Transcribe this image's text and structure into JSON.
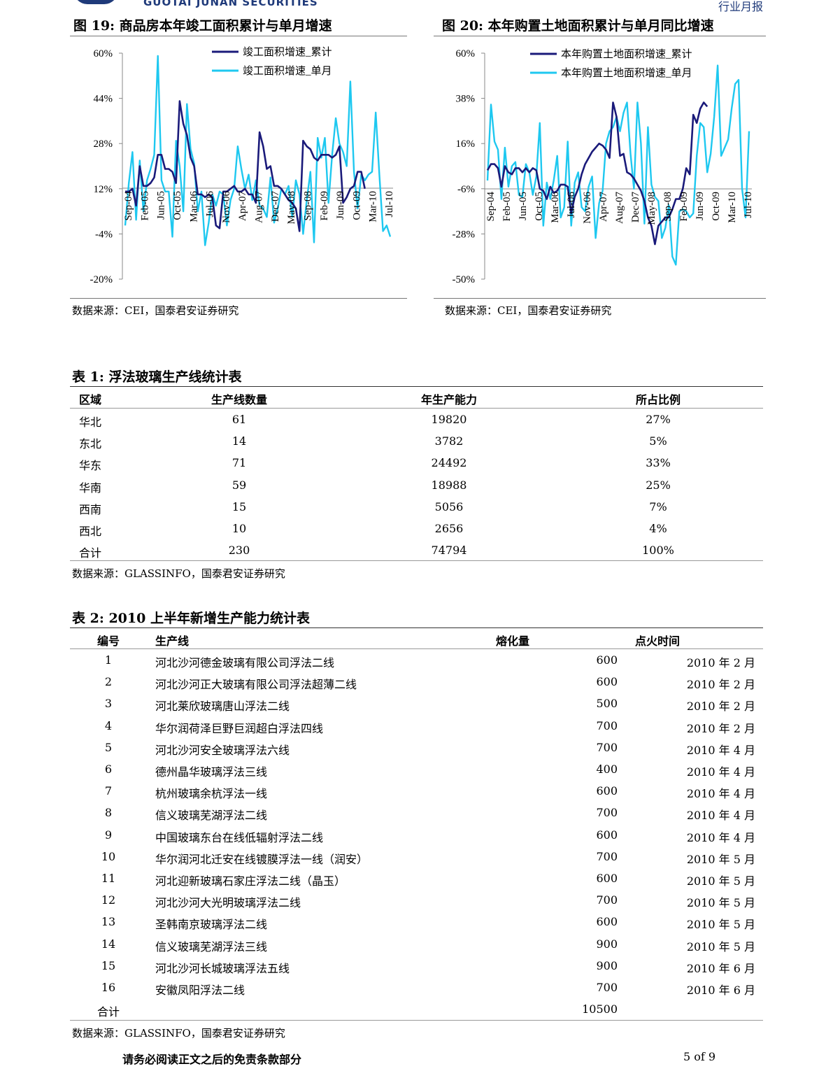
{
  "header": {
    "brand": "GUOTAI JUNAN SECURITIES",
    "report_type": "行业月报"
  },
  "figure19": {
    "title": "图 19:  商品房本年竣工面积累计与单月增速",
    "source": "数据来源：CEI，国泰君安证券研究",
    "chart_data": {
      "type": "line",
      "yticks": [
        "60%",
        "44%",
        "28%",
        "12%",
        "-4%",
        "-20%"
      ],
      "ylim": [
        -20,
        60
      ],
      "xticks": [
        "Sep-04",
        "Feb-05",
        "Jun-05",
        "Oct-05",
        "Mar-06",
        "Jul-06",
        "Nov-06",
        "Apr-07",
        "Aug-07",
        "Dec-07",
        "May-08",
        "Sep-08",
        "Feb-09",
        "Jun-09",
        "Oct-09",
        "Mar-10",
        "Jul-10"
      ],
      "series": [
        {
          "name": "竣工面积增速_累计",
          "color": "#1a1a7a",
          "values": [
            11,
            11,
            12,
            6,
            20,
            13,
            13,
            14,
            16,
            24,
            24,
            19,
            19,
            18,
            14,
            43,
            35,
            31,
            23,
            20,
            10,
            10,
            9,
            10,
            9,
            -1,
            -2,
            11,
            11,
            12,
            13,
            11,
            11,
            12,
            10,
            10,
            7,
            32,
            27,
            19,
            20,
            13,
            13,
            12,
            10,
            8,
            7,
            5,
            -3,
            29,
            27,
            26,
            23,
            22,
            24,
            24,
            24,
            23,
            24,
            27,
            7,
            9,
            12,
            13,
            18,
            18,
            12
          ]
        },
        {
          "name": "竣工面积增速_单月",
          "color": "#1ec8f0",
          "values": [
            -1,
            14,
            25,
            1,
            22,
            4,
            15,
            19,
            24,
            59,
            15,
            11,
            11,
            -5,
            29,
            20,
            4,
            42,
            26,
            21,
            4,
            11,
            -8,
            0,
            10,
            6,
            11,
            10,
            -1,
            8,
            12,
            27,
            19,
            12,
            17,
            8,
            15,
            6,
            5,
            2,
            16,
            0,
            5,
            12,
            10,
            13,
            2,
            15,
            10,
            -4,
            8,
            18,
            -7,
            30,
            23,
            30,
            7,
            24,
            37,
            28,
            25,
            20,
            50,
            18,
            5,
            17,
            15,
            17,
            18,
            39,
            17,
            -3,
            -1,
            -5
          ]
        }
      ]
    }
  },
  "figure20": {
    "title": "图 20:  本年购置土地面积累计与单月同比增速",
    "source": "数据来源：CEI，国泰君安证券研究",
    "chart_data": {
      "type": "line",
      "yticks": [
        "60%",
        "38%",
        "16%",
        "-6%",
        "-28%",
        "-50%"
      ],
      "ylim": [
        -50,
        60
      ],
      "xticks": [
        "Sep-04",
        "Feb-05",
        "Jun-05",
        "Oct-05",
        "Mar-06",
        "Jul-06",
        "Nov-06",
        "Apr-07",
        "Aug-07",
        "Dec-07",
        "May-08",
        "Sep-08",
        "Feb-09",
        "Jun-09",
        "Oct-09",
        "Mar-10",
        "Jul-10"
      ],
      "series": [
        {
          "name": "本年购置土地面积增速_累计",
          "color": "#1a1a7a",
          "values": [
            3,
            6,
            6,
            4,
            -5,
            5,
            2,
            1,
            4,
            4,
            2,
            4,
            2,
            4,
            3,
            -6,
            -7,
            -11,
            -5,
            -8,
            -7,
            -4,
            -4,
            -5,
            -18,
            -10,
            -6,
            1,
            6,
            9,
            12,
            14,
            16,
            15,
            13,
            9,
            36,
            29,
            10,
            11,
            2,
            1,
            -1,
            -4,
            -7,
            -12,
            -20,
            -24,
            -33,
            -24,
            -22,
            -20,
            -20,
            -16,
            -11,
            -11,
            -6,
            4,
            1,
            30,
            26,
            33,
            36,
            34
          ]
        },
        {
          "name": "本年购置土地面积增速_单月",
          "color": "#1ec8f0",
          "values": [
            -2,
            35,
            17,
            13,
            -11,
            14,
            -5,
            5,
            7,
            -9,
            -10,
            6,
            2,
            -9,
            0,
            26,
            -24,
            -3,
            -11,
            -2,
            10,
            -20,
            -15,
            17,
            -24,
            -3,
            2,
            -15,
            -17,
            -5,
            0,
            -30,
            -13,
            -7,
            16,
            22,
            24,
            29,
            22,
            31,
            36,
            11,
            -6,
            36,
            16,
            -23,
            24,
            -4,
            -10,
            -12,
            -30,
            -25,
            -14,
            -39,
            -43,
            -17,
            -16,
            -17,
            -20,
            -18,
            10,
            26,
            24,
            2,
            11,
            29,
            54,
            10,
            14,
            18,
            33,
            45,
            47,
            -6,
            -20,
            22
          ]
        }
      ]
    }
  },
  "table1": {
    "title": "表 1:  浮法玻璃生产线统计表",
    "headers": [
      "区域",
      "生产线数量",
      "年生产能力",
      "所占比例"
    ],
    "rows": [
      [
        "华北",
        "61",
        "19820",
        "27%"
      ],
      [
        "东北",
        "14",
        "3782",
        "5%"
      ],
      [
        "华东",
        "71",
        "24492",
        "33%"
      ],
      [
        "华南",
        "59",
        "18988",
        "25%"
      ],
      [
        "西南",
        "15",
        "5056",
        "7%"
      ],
      [
        "西北",
        "10",
        "2656",
        "4%"
      ],
      [
        "合计",
        "230",
        "74794",
        "100%"
      ]
    ],
    "source": "数据来源：GLASSINFO，国泰君安证券研究"
  },
  "table2": {
    "title": "表 2:  2010 上半年新增生产能力统计表",
    "headers": [
      "编号",
      "生产线",
      "熔化量",
      "点火时间"
    ],
    "rows": [
      [
        "1",
        "河北沙河德金玻璃有限公司浮法二线",
        "600",
        "2010 年 2 月"
      ],
      [
        "2",
        "河北沙河正大玻璃有限公司浮法超薄二线",
        "600",
        "2010 年 2 月"
      ],
      [
        "3",
        "河北莱欣玻璃唐山浮法二线",
        "500",
        "2010 年 2 月"
      ],
      [
        "4",
        "华尔润荷泽巨野巨润超白浮法四线",
        "700",
        "2010 年 2 月"
      ],
      [
        "5",
        "河北沙河安全玻璃浮法六线",
        "700",
        "2010 年 4 月"
      ],
      [
        "6",
        "德州晶华玻璃浮法三线",
        "400",
        "2010 年 4 月"
      ],
      [
        "7",
        "杭州玻璃余杭浮法一线",
        "600",
        "2010 年 4 月"
      ],
      [
        "8",
        "信义玻璃芜湖浮法二线",
        "700",
        "2010 年 4 月"
      ],
      [
        "9",
        "中国玻璃东台在线低辐射浮法二线",
        "600",
        "2010 年 4 月"
      ],
      [
        "10",
        "华尔润河北迁安在线镀膜浮法一线（润安）",
        "700",
        "2010 年 5 月"
      ],
      [
        "11",
        "河北迎新玻璃石家庄浮法二线（晶玉）",
        "600",
        "2010 年 5 月"
      ],
      [
        "12",
        "河北沙河大光明玻璃浮法二线",
        "700",
        "2010 年 5 月"
      ],
      [
        "13",
        "圣韩南京玻璃浮法二线",
        "600",
        "2010 年 5 月"
      ],
      [
        "14",
        "信义玻璃芜湖浮法三线",
        "900",
        "2010 年 5 月"
      ],
      [
        "15",
        "河北沙河长城玻璃浮法五线",
        "900",
        "2010 年 6 月"
      ],
      [
        "16",
        "安徽凤阳浮法二线",
        "700",
        "2010 年 6 月"
      ]
    ],
    "total_label": "合计",
    "total_value": "10500",
    "source": "数据来源：GLASSINFO，国泰君安证券研究"
  },
  "footer": {
    "disclaimer": "请务必阅读正文之后的免责条款部分",
    "page": "5 of 9"
  }
}
